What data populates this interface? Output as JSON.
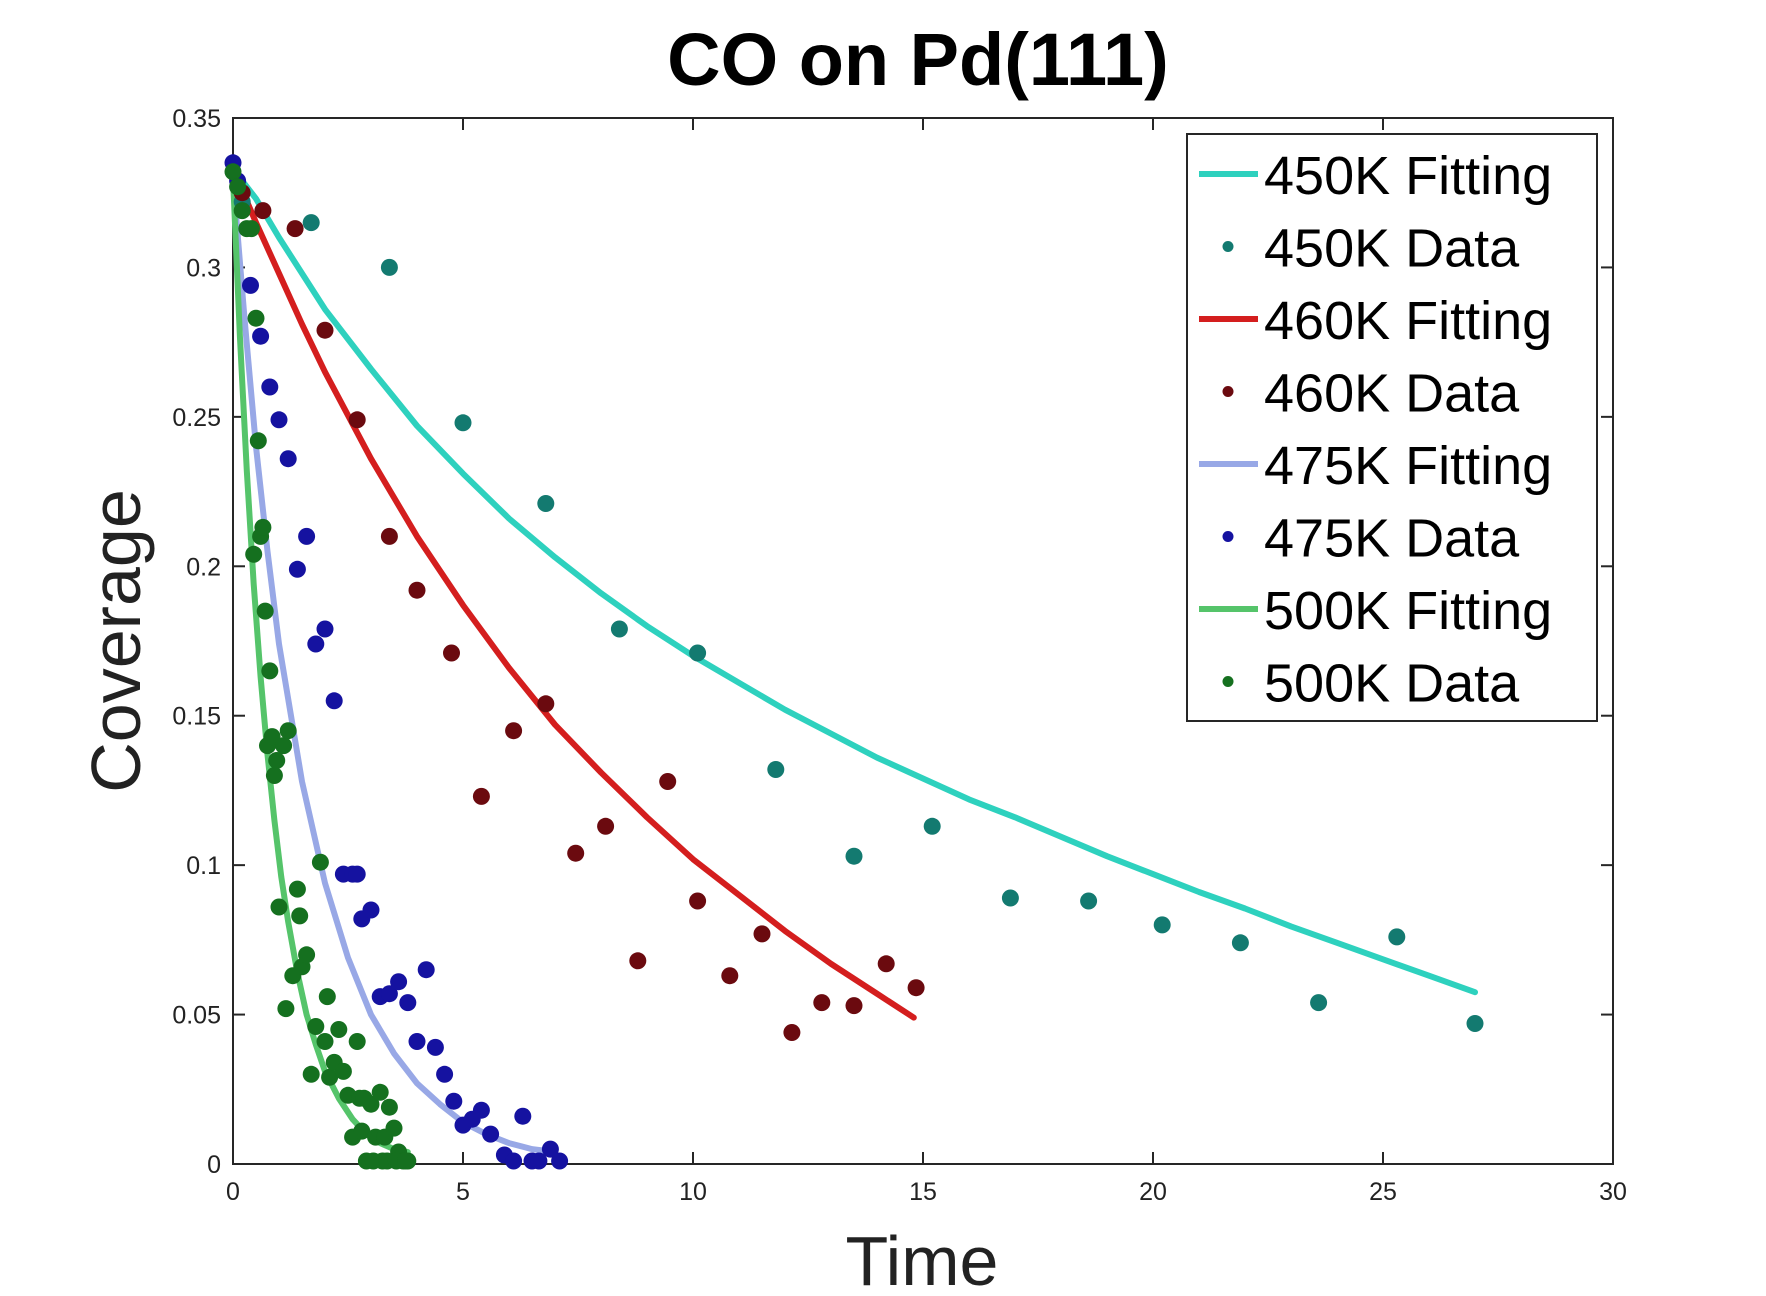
{
  "chart_data": {
    "type": "scatter",
    "title": "CO on Pd(111)",
    "xlabel": "Time",
    "ylabel": "Coverage",
    "xlim": [
      0,
      30
    ],
    "ylim": [
      0,
      0.35
    ],
    "xticks": [
      0,
      5,
      10,
      15,
      20,
      25,
      30
    ],
    "yticks": [
      0,
      0.05,
      0.1,
      0.15,
      0.2,
      0.25,
      0.3,
      0.35
    ],
    "xtick_labels": [
      "0",
      "5",
      "10",
      "15",
      "20",
      "25",
      "30"
    ],
    "ytick_labels": [
      "0",
      "0.05",
      "0.1",
      "0.15",
      "0.2",
      "0.25",
      "0.3",
      "0.35"
    ],
    "grid": false,
    "legend_position": "top-right",
    "series": [
      {
        "name": "450K Fitting",
        "kind": "line",
        "color": "#2ED1BE",
        "x": [
          0,
          0.5,
          1,
          2,
          3,
          4,
          5,
          6,
          7,
          8,
          9,
          10,
          11,
          12,
          13,
          14,
          15,
          16,
          17,
          18,
          19,
          20,
          21,
          22,
          23,
          24,
          25,
          26,
          27
        ],
        "y": [
          0.333,
          0.323,
          0.31,
          0.286,
          0.266,
          0.247,
          0.231,
          0.216,
          0.203,
          0.191,
          0.18,
          0.17,
          0.161,
          0.152,
          0.144,
          0.136,
          0.129,
          0.122,
          0.116,
          0.1095,
          0.103,
          0.097,
          0.091,
          0.0855,
          0.0795,
          0.074,
          0.0685,
          0.063,
          0.0575
        ]
      },
      {
        "name": "450K Data",
        "kind": "points",
        "color": "#137A70",
        "x": [
          0.2,
          1.7,
          3.4,
          5.0,
          6.8,
          8.4,
          10.1,
          11.8,
          13.5,
          15.2,
          16.9,
          18.6,
          20.2,
          21.9,
          23.6,
          25.3,
          27.0
        ],
        "y": [
          0.322,
          0.315,
          0.3,
          0.248,
          0.221,
          0.179,
          0.171,
          0.132,
          0.103,
          0.113,
          0.089,
          0.088,
          0.08,
          0.074,
          0.054,
          0.076,
          0.047
        ]
      },
      {
        "name": "460K Fitting",
        "kind": "line",
        "color": "#D41E1E",
        "x": [
          0,
          0.5,
          1,
          1.5,
          2,
          3,
          4,
          5,
          6,
          7,
          8,
          9,
          10,
          11,
          12,
          13,
          14,
          14.8
        ],
        "y": [
          0.333,
          0.315,
          0.298,
          0.281,
          0.265,
          0.236,
          0.21,
          0.187,
          0.166,
          0.147,
          0.131,
          0.116,
          0.102,
          0.09,
          0.078,
          0.067,
          0.057,
          0.049
        ]
      },
      {
        "name": "460K Data",
        "kind": "points",
        "color": "#6B0A0F",
        "x": [
          0.2,
          0.65,
          1.35,
          2.0,
          2.7,
          3.4,
          4.0,
          4.75,
          5.4,
          6.1,
          6.8,
          7.45,
          8.1,
          8.8,
          9.45,
          10.1,
          10.8,
          11.5,
          12.15,
          12.8,
          13.5,
          14.2,
          14.85
        ],
        "y": [
          0.325,
          0.319,
          0.313,
          0.279,
          0.249,
          0.21,
          0.192,
          0.171,
          0.123,
          0.145,
          0.154,
          0.104,
          0.113,
          0.068,
          0.128,
          0.088,
          0.063,
          0.077,
          0.044,
          0.054,
          0.053,
          0.067,
          0.059
        ]
      },
      {
        "name": "475K Fitting",
        "kind": "line",
        "color": "#98A8E6",
        "x": [
          0,
          0.25,
          0.5,
          0.75,
          1,
          1.5,
          2,
          2.5,
          3,
          3.5,
          4,
          4.5,
          5,
          5.5,
          6,
          6.5,
          7
        ],
        "y": [
          0.33,
          0.283,
          0.24,
          0.205,
          0.174,
          0.128,
          0.094,
          0.069,
          0.05,
          0.037,
          0.027,
          0.02,
          0.014,
          0.01,
          0.007,
          0.005,
          0.004
        ]
      },
      {
        "name": "475K Data",
        "kind": "points",
        "color": "#1512A0",
        "x": [
          0.0,
          0.1,
          0.38,
          0.6,
          0.8,
          1.0,
          1.2,
          1.4,
          1.6,
          1.8,
          2.0,
          2.2,
          2.4,
          2.6,
          2.7,
          2.8,
          3.0,
          3.2,
          3.4,
          3.6,
          3.8,
          4.0,
          4.2,
          4.4,
          4.6,
          4.8,
          5.0,
          5.2,
          5.4,
          5.6,
          5.9,
          6.1,
          6.3,
          6.5,
          6.65,
          6.9,
          7.1
        ],
        "y": [
          0.335,
          0.329,
          0.294,
          0.277,
          0.26,
          0.249,
          0.236,
          0.199,
          0.21,
          0.174,
          0.179,
          0.155,
          0.097,
          0.097,
          0.097,
          0.082,
          0.085,
          0.056,
          0.057,
          0.061,
          0.054,
          0.041,
          0.065,
          0.039,
          0.03,
          0.021,
          0.013,
          0.015,
          0.018,
          0.01,
          0.003,
          0.001,
          0.016,
          0.001,
          0.001,
          0.005,
          0.001
        ]
      },
      {
        "name": "500K Fitting",
        "kind": "line",
        "color": "#55C46A",
        "x": [
          0,
          0.15,
          0.3,
          0.45,
          0.6,
          0.75,
          0.9,
          1.05,
          1.2,
          1.4,
          1.6,
          1.8,
          2.0,
          2.3,
          2.6,
          2.9,
          3.2,
          3.5,
          3.8
        ],
        "y": [
          0.33,
          0.277,
          0.232,
          0.194,
          0.163,
          0.137,
          0.115,
          0.096,
          0.081,
          0.064,
          0.05,
          0.04,
          0.031,
          0.022,
          0.015,
          0.01,
          0.007,
          0.005,
          0.004
        ]
      },
      {
        "name": "500K Data",
        "kind": "points",
        "color": "#15701F",
        "x": [
          0.0,
          0.1,
          0.2,
          0.3,
          0.4,
          0.45,
          0.5,
          0.55,
          0.6,
          0.65,
          0.7,
          0.75,
          0.8,
          0.85,
          0.9,
          0.95,
          1.0,
          1.1,
          1.15,
          1.2,
          1.3,
          1.4,
          1.45,
          1.5,
          1.6,
          1.7,
          1.8,
          1.9,
          2.0,
          2.05,
          2.1,
          2.2,
          2.3,
          2.4,
          2.5,
          2.6,
          2.7,
          2.75,
          2.8,
          2.9,
          3.0,
          3.1,
          3.2,
          3.25,
          3.3,
          3.4,
          3.5,
          3.6,
          3.7,
          3.8,
          2.85,
          3.05,
          3.35,
          3.55,
          3.75
        ],
        "y": [
          0.332,
          0.327,
          0.319,
          0.313,
          0.313,
          0.204,
          0.283,
          0.242,
          0.21,
          0.213,
          0.185,
          0.14,
          0.165,
          0.143,
          0.13,
          0.135,
          0.086,
          0.14,
          0.052,
          0.145,
          0.063,
          0.092,
          0.083,
          0.066,
          0.07,
          0.03,
          0.046,
          0.101,
          0.041,
          0.056,
          0.029,
          0.034,
          0.045,
          0.031,
          0.023,
          0.009,
          0.041,
          0.022,
          0.011,
          0.001,
          0.02,
          0.009,
          0.024,
          0.001,
          0.009,
          0.019,
          0.012,
          0.004,
          0.001,
          0.001,
          0.022,
          0.001,
          0.001,
          0.001,
          0.001
        ]
      }
    ]
  }
}
